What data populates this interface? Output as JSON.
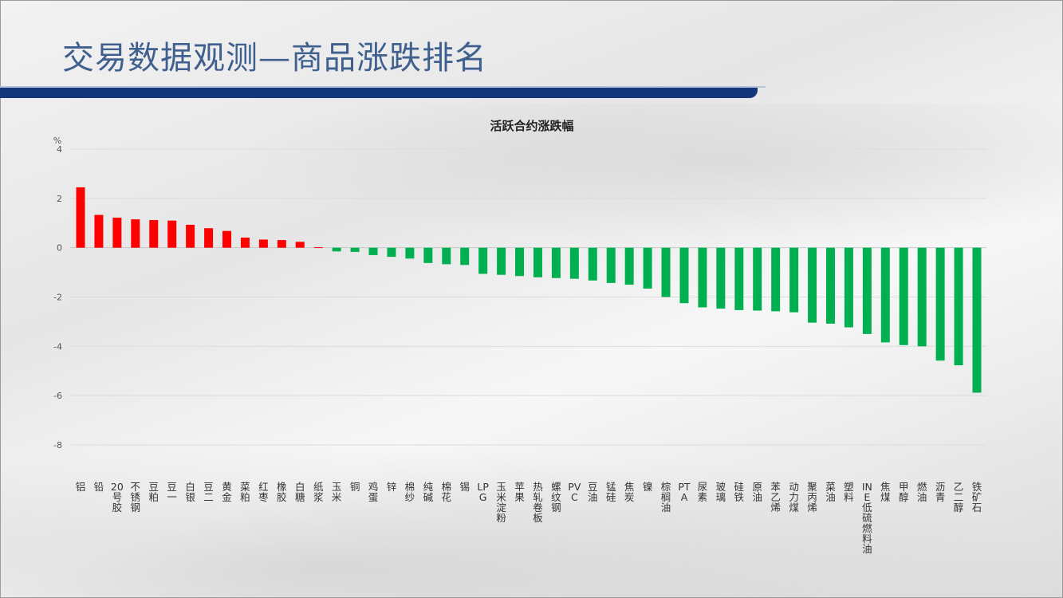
{
  "slide": {
    "title": "交易数据观测—商品涨跌排名"
  },
  "colors": {
    "up": "#ff0000",
    "down": "#00b050",
    "title": "#3f5f8e",
    "header_bar": "#13377a"
  },
  "chart_data": {
    "type": "bar",
    "title": "活跃合约涨跌幅",
    "ylabel": "%",
    "ylim": [
      -8,
      4
    ],
    "yticks": [
      4,
      2,
      0,
      -2,
      -4,
      -6,
      -8
    ],
    "grid": true,
    "categories": [
      "铝",
      "铅",
      "20号胶",
      "不锈钢",
      "豆粕",
      "豆一",
      "白银",
      "豆二",
      "黄金",
      "菜粕",
      "红枣",
      "橡胶",
      "白糖",
      "纸浆",
      "玉米",
      "铜",
      "鸡蛋",
      "锌",
      "棉纱",
      "纯碱",
      "棉花",
      "锡",
      "LPG",
      "玉米淀粉",
      "苹果",
      "热轧卷板",
      "螺纹钢",
      "PVC",
      "豆油",
      "锰硅",
      "焦炭",
      "镍",
      "棕榈油",
      "PTA",
      "尿素",
      "玻璃",
      "硅铁",
      "原油",
      "苯乙烯",
      "动力煤",
      "聚丙烯",
      "菜油",
      "塑料",
      "INE低硫燃料油",
      "焦煤",
      "甲醇",
      "燃油",
      "沥青",
      "乙二醇",
      "铁矿石"
    ],
    "values": [
      2.45,
      1.33,
      1.22,
      1.15,
      1.12,
      1.1,
      0.93,
      0.79,
      0.68,
      0.41,
      0.33,
      0.31,
      0.24,
      0.02,
      -0.15,
      -0.17,
      -0.3,
      -0.37,
      -0.44,
      -0.62,
      -0.67,
      -0.7,
      -1.06,
      -1.1,
      -1.15,
      -1.2,
      -1.23,
      -1.26,
      -1.33,
      -1.43,
      -1.5,
      -1.66,
      -2.0,
      -2.25,
      -2.42,
      -2.47,
      -2.53,
      -2.55,
      -2.58,
      -2.62,
      -3.04,
      -3.08,
      -3.23,
      -3.5,
      -3.84,
      -3.95,
      -4.0,
      -4.58,
      -4.77,
      -5.88
    ]
  }
}
